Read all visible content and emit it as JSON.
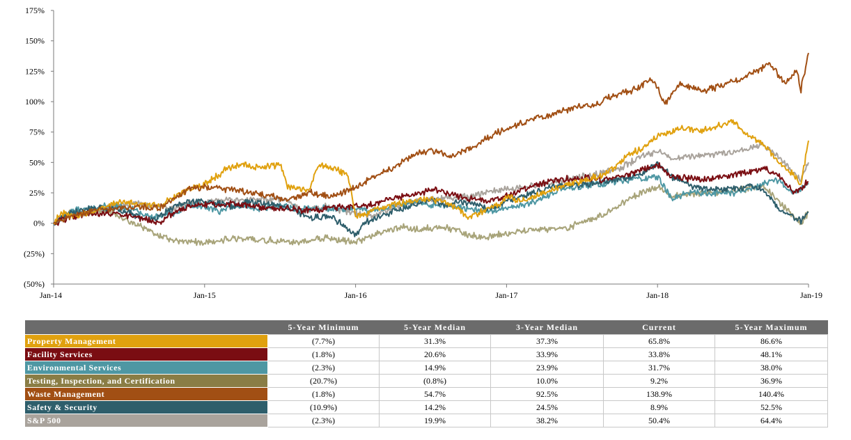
{
  "chart_data": {
    "type": "line",
    "title": "",
    "xlabel": "",
    "ylabel": "",
    "ylim": [
      -50,
      175
    ],
    "y_ticks": [
      "175%",
      "150%",
      "125%",
      "100%",
      "75%",
      "50%",
      "25%",
      "0%",
      "(25%)",
      "(50%)"
    ],
    "y_tick_values": [
      175,
      150,
      125,
      100,
      75,
      50,
      25,
      0,
      -25,
      -50
    ],
    "x_ticks": [
      "Jan-14",
      "Jan-15",
      "Jan-16",
      "Jan-17",
      "Jan-18",
      "Jan-19"
    ],
    "x_tick_values": [
      2014,
      2015,
      2016,
      2017,
      2018,
      2019
    ],
    "xlim": [
      2014,
      2019
    ],
    "grid": false,
    "legend": "table-below",
    "series": [
      {
        "name": "S&P 500",
        "color": "#a9a39c",
        "points": [
          [
            2014,
            0
          ],
          [
            2014.1,
            6
          ],
          [
            2014.25,
            9
          ],
          [
            2014.4,
            14
          ],
          [
            2014.55,
            16
          ],
          [
            2014.7,
            14
          ],
          [
            2014.8,
            12
          ],
          [
            2014.9,
            18
          ],
          [
            2015,
            16
          ],
          [
            2015.15,
            20
          ],
          [
            2015.3,
            19
          ],
          [
            2015.5,
            20
          ],
          [
            2015.6,
            16
          ],
          [
            2015.65,
            10
          ],
          [
            2015.8,
            14
          ],
          [
            2016,
            8
          ],
          [
            2016.1,
            5
          ],
          [
            2016.25,
            13
          ],
          [
            2016.5,
            20
          ],
          [
            2016.75,
            22
          ],
          [
            2016.85,
            25
          ],
          [
            2017,
            28
          ],
          [
            2017.25,
            32
          ],
          [
            2017.5,
            38
          ],
          [
            2017.75,
            45
          ],
          [
            2017.9,
            55
          ],
          [
            2018,
            60
          ],
          [
            2018.1,
            54
          ],
          [
            2018.25,
            55
          ],
          [
            2018.5,
            58
          ],
          [
            2018.7,
            64
          ],
          [
            2018.8,
            55
          ],
          [
            2018.95,
            35
          ],
          [
            2019,
            50
          ]
        ]
      },
      {
        "name": "Testing, Inspection, and Certification",
        "color": "#a8a47a",
        "points": [
          [
            2014,
            0
          ],
          [
            2014.1,
            8
          ],
          [
            2014.25,
            10
          ],
          [
            2014.4,
            8
          ],
          [
            2014.5,
            2
          ],
          [
            2014.7,
            -10
          ],
          [
            2014.8,
            -14
          ],
          [
            2015,
            -16
          ],
          [
            2015.2,
            -12
          ],
          [
            2015.4,
            -14
          ],
          [
            2015.6,
            -16
          ],
          [
            2015.8,
            -12
          ],
          [
            2016,
            -16
          ],
          [
            2016.15,
            -8
          ],
          [
            2016.3,
            -3
          ],
          [
            2016.4,
            -5
          ],
          [
            2016.6,
            -3
          ],
          [
            2016.7,
            -8
          ],
          [
            2016.85,
            -12
          ],
          [
            2017,
            -8
          ],
          [
            2017.2,
            -5
          ],
          [
            2017.4,
            -4
          ],
          [
            2017.6,
            5
          ],
          [
            2017.75,
            15
          ],
          [
            2017.9,
            26
          ],
          [
            2018,
            30
          ],
          [
            2018.1,
            22
          ],
          [
            2018.3,
            25
          ],
          [
            2018.5,
            27
          ],
          [
            2018.7,
            30
          ],
          [
            2018.85,
            12
          ],
          [
            2018.95,
            0
          ],
          [
            2019,
            9
          ]
        ]
      },
      {
        "name": "Environmental Services",
        "color": "#4e97a3",
        "points": [
          [
            2014,
            0
          ],
          [
            2014.1,
            10
          ],
          [
            2014.25,
            12
          ],
          [
            2014.4,
            15
          ],
          [
            2014.5,
            12
          ],
          [
            2014.65,
            5
          ],
          [
            2014.8,
            8
          ],
          [
            2014.9,
            15
          ],
          [
            2015,
            14
          ],
          [
            2015.1,
            10
          ],
          [
            2015.2,
            15
          ],
          [
            2015.35,
            12
          ],
          [
            2015.5,
            14
          ],
          [
            2015.65,
            12
          ],
          [
            2015.8,
            12
          ],
          [
            2016,
            12
          ],
          [
            2016.1,
            10
          ],
          [
            2016.25,
            14
          ],
          [
            2016.4,
            18
          ],
          [
            2016.5,
            15
          ],
          [
            2016.65,
            14
          ],
          [
            2016.75,
            12
          ],
          [
            2016.85,
            10
          ],
          [
            2017,
            12
          ],
          [
            2017.2,
            18
          ],
          [
            2017.35,
            28
          ],
          [
            2017.5,
            30
          ],
          [
            2017.65,
            33
          ],
          [
            2017.8,
            36
          ],
          [
            2018,
            38
          ],
          [
            2018.1,
            20
          ],
          [
            2018.2,
            25
          ],
          [
            2018.5,
            25
          ],
          [
            2018.65,
            30
          ],
          [
            2018.8,
            36
          ],
          [
            2018.9,
            25
          ],
          [
            2019,
            32
          ]
        ]
      },
      {
        "name": "Safety & Security",
        "color": "#2e5e6b",
        "points": [
          [
            2014,
            0
          ],
          [
            2014.1,
            8
          ],
          [
            2014.25,
            12
          ],
          [
            2014.4,
            12
          ],
          [
            2014.5,
            8
          ],
          [
            2014.65,
            2
          ],
          [
            2014.75,
            10
          ],
          [
            2014.85,
            17
          ],
          [
            2015,
            18
          ],
          [
            2015.2,
            14
          ],
          [
            2015.3,
            18
          ],
          [
            2015.4,
            16
          ],
          [
            2015.5,
            15
          ],
          [
            2015.6,
            10
          ],
          [
            2015.7,
            5
          ],
          [
            2015.85,
            5
          ],
          [
            2016,
            -10
          ],
          [
            2016.05,
            0
          ],
          [
            2016.15,
            5
          ],
          [
            2016.25,
            10
          ],
          [
            2016.4,
            15
          ],
          [
            2016.5,
            20
          ],
          [
            2016.6,
            14
          ],
          [
            2016.7,
            18
          ],
          [
            2016.8,
            15
          ],
          [
            2016.9,
            12
          ],
          [
            2017,
            18
          ],
          [
            2017.15,
            24
          ],
          [
            2017.3,
            30
          ],
          [
            2017.5,
            32
          ],
          [
            2017.7,
            35
          ],
          [
            2017.9,
            40
          ],
          [
            2018,
            50
          ],
          [
            2018.1,
            38
          ],
          [
            2018.25,
            30
          ],
          [
            2018.4,
            28
          ],
          [
            2018.6,
            30
          ],
          [
            2018.7,
            28
          ],
          [
            2018.8,
            12
          ],
          [
            2018.9,
            5
          ],
          [
            2018.95,
            2
          ],
          [
            2019,
            9
          ]
        ]
      },
      {
        "name": "Facility Services",
        "color": "#7a0d12",
        "points": [
          [
            2014,
            0
          ],
          [
            2014.1,
            5
          ],
          [
            2014.25,
            8
          ],
          [
            2014.4,
            8
          ],
          [
            2014.55,
            5
          ],
          [
            2014.7,
            0
          ],
          [
            2014.8,
            10
          ],
          [
            2014.9,
            14
          ],
          [
            2015,
            15
          ],
          [
            2015.2,
            16
          ],
          [
            2015.3,
            15
          ],
          [
            2015.4,
            13
          ],
          [
            2015.55,
            12
          ],
          [
            2015.7,
            10
          ],
          [
            2015.8,
            12
          ],
          [
            2016,
            14
          ],
          [
            2016.1,
            15
          ],
          [
            2016.2,
            20
          ],
          [
            2016.35,
            22
          ],
          [
            2016.5,
            28
          ],
          [
            2016.6,
            25
          ],
          [
            2016.7,
            22
          ],
          [
            2016.85,
            18
          ],
          [
            2017,
            22
          ],
          [
            2017.15,
            30
          ],
          [
            2017.3,
            35
          ],
          [
            2017.5,
            38
          ],
          [
            2017.65,
            35
          ],
          [
            2017.8,
            40
          ],
          [
            2018,
            48
          ],
          [
            2018.1,
            38
          ],
          [
            2018.3,
            36
          ],
          [
            2018.5,
            40
          ],
          [
            2018.7,
            45
          ],
          [
            2018.8,
            40
          ],
          [
            2018.9,
            25
          ],
          [
            2019,
            34
          ]
        ]
      },
      {
        "name": "Property Management",
        "color": "#e0a10f",
        "points": [
          [
            2014,
            0
          ],
          [
            2014.05,
            8
          ],
          [
            2014.15,
            6
          ],
          [
            2014.3,
            12
          ],
          [
            2014.45,
            18
          ],
          [
            2014.55,
            16
          ],
          [
            2014.7,
            14
          ],
          [
            2014.8,
            22
          ],
          [
            2014.9,
            28
          ],
          [
            2015,
            32
          ],
          [
            2015.15,
            45
          ],
          [
            2015.25,
            48
          ],
          [
            2015.4,
            46
          ],
          [
            2015.5,
            48
          ],
          [
            2015.55,
            30
          ],
          [
            2015.7,
            28
          ],
          [
            2015.75,
            48
          ],
          [
            2015.85,
            45
          ],
          [
            2015.95,
            40
          ],
          [
            2016,
            5
          ],
          [
            2016.1,
            10
          ],
          [
            2016.2,
            14
          ],
          [
            2016.35,
            18
          ],
          [
            2016.5,
            20
          ],
          [
            2016.6,
            18
          ],
          [
            2016.75,
            5
          ],
          [
            2016.85,
            10
          ],
          [
            2016.95,
            15
          ],
          [
            2017,
            22
          ],
          [
            2017.1,
            18
          ],
          [
            2017.25,
            25
          ],
          [
            2017.35,
            30
          ],
          [
            2017.5,
            35
          ],
          [
            2017.65,
            40
          ],
          [
            2017.8,
            55
          ],
          [
            2017.9,
            62
          ],
          [
            2018,
            72
          ],
          [
            2018.15,
            78
          ],
          [
            2018.3,
            76
          ],
          [
            2018.4,
            80
          ],
          [
            2018.5,
            84
          ],
          [
            2018.6,
            72
          ],
          [
            2018.7,
            65
          ],
          [
            2018.8,
            50
          ],
          [
            2018.9,
            40
          ],
          [
            2018.95,
            32
          ],
          [
            2019,
            68
          ]
        ]
      },
      {
        "name": "Waste Management",
        "color": "#a14f14",
        "points": [
          [
            2014,
            0
          ],
          [
            2014.1,
            5
          ],
          [
            2014.25,
            10
          ],
          [
            2014.4,
            12
          ],
          [
            2014.55,
            14
          ],
          [
            2014.7,
            12
          ],
          [
            2014.8,
            20
          ],
          [
            2014.9,
            28
          ],
          [
            2015,
            30
          ],
          [
            2015.15,
            28
          ],
          [
            2015.3,
            25
          ],
          [
            2015.45,
            22
          ],
          [
            2015.55,
            20
          ],
          [
            2015.7,
            25
          ],
          [
            2015.85,
            22
          ],
          [
            2016,
            30
          ],
          [
            2016.15,
            40
          ],
          [
            2016.25,
            45
          ],
          [
            2016.4,
            58
          ],
          [
            2016.5,
            60
          ],
          [
            2016.65,
            55
          ],
          [
            2016.8,
            65
          ],
          [
            2016.95,
            75
          ],
          [
            2017,
            78
          ],
          [
            2017.15,
            85
          ],
          [
            2017.3,
            90
          ],
          [
            2017.45,
            95
          ],
          [
            2017.6,
            98
          ],
          [
            2017.7,
            105
          ],
          [
            2017.85,
            110
          ],
          [
            2017.95,
            118
          ],
          [
            2018,
            112
          ],
          [
            2018.05,
            98
          ],
          [
            2018.15,
            115
          ],
          [
            2018.3,
            108
          ],
          [
            2018.45,
            115
          ],
          [
            2018.55,
            118
          ],
          [
            2018.65,
            125
          ],
          [
            2018.75,
            130
          ],
          [
            2018.85,
            115
          ],
          [
            2018.92,
            126
          ],
          [
            2018.95,
            110
          ],
          [
            2019,
            140
          ]
        ]
      }
    ]
  },
  "table": {
    "headers": [
      "5-Year Minimum",
      "5-Year Median",
      "3-Year Median",
      "Current",
      "5-Year Maximum"
    ],
    "rows": [
      {
        "label": "Property Management",
        "color": "#e0a10f",
        "values": [
          "(7.7%)",
          "31.3%",
          "37.3%",
          "65.8%",
          "86.6%"
        ]
      },
      {
        "label": "Facility Services",
        "color": "#7a0d12",
        "values": [
          "(1.8%)",
          "20.6%",
          "33.9%",
          "33.8%",
          "48.1%"
        ]
      },
      {
        "label": "Environmental Services",
        "color": "#4e97a3",
        "values": [
          "(2.3%)",
          "14.9%",
          "23.9%",
          "31.7%",
          "38.0%"
        ]
      },
      {
        "label": "Testing, Inspection, and Certification",
        "color": "#8a7d45",
        "values": [
          "(20.7%)",
          "(0.8%)",
          "10.0%",
          "9.2%",
          "36.9%"
        ]
      },
      {
        "label": "Waste Management",
        "color": "#a14f14",
        "values": [
          "(1.8%)",
          "54.7%",
          "92.5%",
          "138.9%",
          "140.4%"
        ]
      },
      {
        "label": "Safety & Security",
        "color": "#2e5e6b",
        "values": [
          "(10.9%)",
          "14.2%",
          "24.5%",
          "8.9%",
          "52.5%"
        ]
      },
      {
        "label": "S&P 500",
        "color": "#a9a39c",
        "values": [
          "(2.3%)",
          "19.9%",
          "38.2%",
          "50.4%",
          "64.4%"
        ]
      }
    ]
  }
}
